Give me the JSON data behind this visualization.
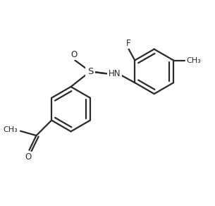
{
  "bg_color": "#ffffff",
  "line_color": "#2a2a2a",
  "line_width": 1.6,
  "font_size": 8.5,
  "xlim": [
    0,
    10
  ],
  "ylim": [
    0,
    9
  ],
  "figsize": [
    3.05,
    2.92
  ],
  "dpi": 100
}
